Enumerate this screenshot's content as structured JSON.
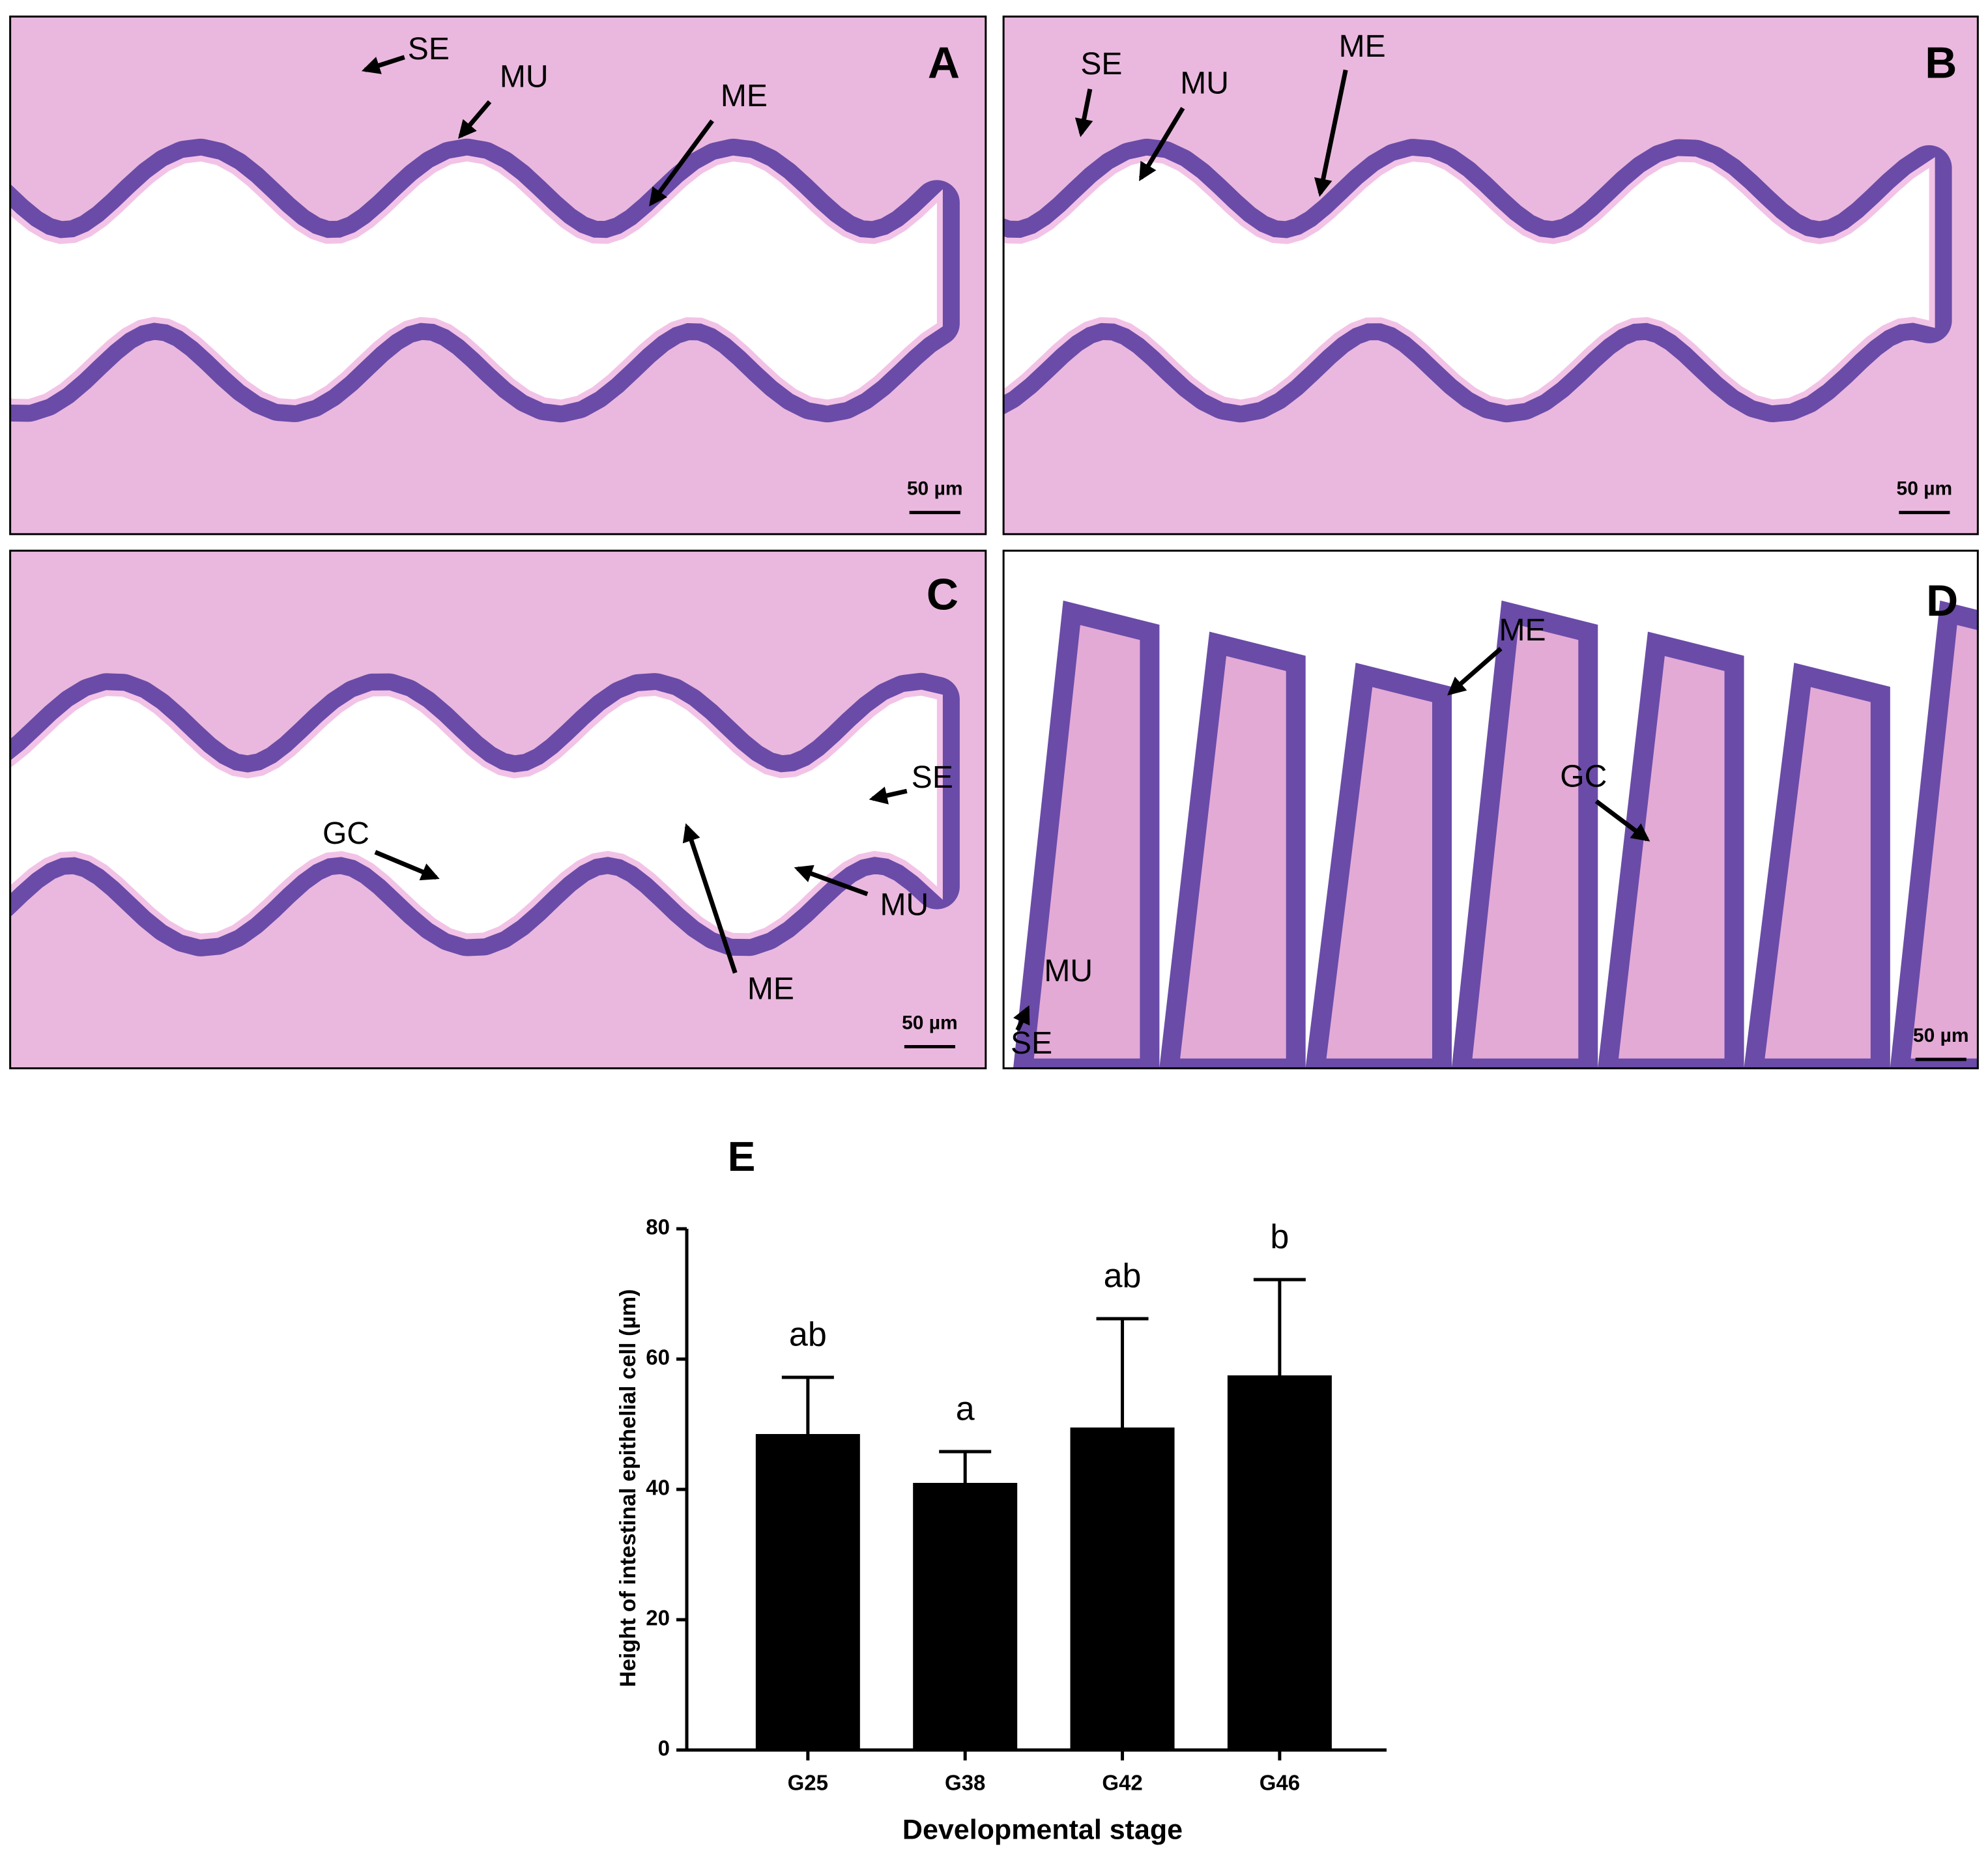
{
  "panels": [
    {
      "letter": "A",
      "labels": [
        "SE",
        "MU",
        "ME"
      ],
      "scale_bar": "50 µm"
    },
    {
      "letter": "B",
      "labels": [
        "SE",
        "MU",
        "ME"
      ],
      "scale_bar": "50 µm"
    },
    {
      "letter": "C",
      "labels": [
        "GC",
        "SE",
        "MU",
        "ME"
      ],
      "scale_bar": "50 µm"
    },
    {
      "letter": "D",
      "labels": [
        "ME",
        "GC",
        "MU",
        "SE"
      ],
      "scale_bar": "50 µm"
    }
  ],
  "chart_data": {
    "type": "bar",
    "title": "E",
    "x_label": "Developmental stage",
    "y_label": "Height of intestinal epithelial cell (µm)",
    "categories": [
      "G25",
      "G38",
      "G42",
      "G46"
    ],
    "values": [
      48.5,
      41,
      49.5,
      57.5
    ],
    "errors": [
      8.7,
      4.8,
      16.7,
      14.7
    ],
    "significance": [
      "ab",
      "a",
      "ab",
      "b"
    ],
    "color": "#000000",
    "ylim": [
      0,
      80
    ],
    "yticks": [
      0,
      20,
      40,
      60,
      80
    ]
  }
}
